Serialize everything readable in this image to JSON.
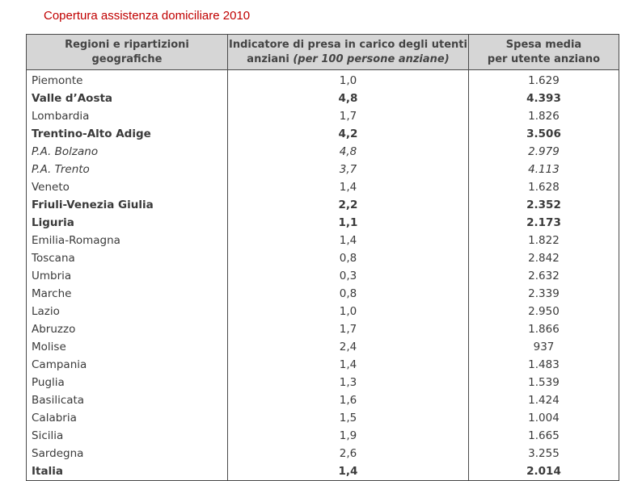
{
  "title": "Copertura assistenza domiciliare  2010",
  "header": {
    "col1_line1": "Regioni e ripartizioni",
    "col1_line2": "geografiche",
    "col2_line1": "Indicatore di presa in carico degli utenti",
    "col2_line2_a": "anziani ",
    "col2_line2_b": "(per 100 persone anziane)",
    "col3_line1": "Spesa media",
    "col3_line2": "per utente anziano"
  },
  "rows": [
    {
      "region": "Piemonte",
      "indicator": "1,0",
      "spesa": "1.629",
      "style": ""
    },
    {
      "region": "Valle d’Aosta",
      "indicator": "4,8",
      "spesa": "4.393",
      "style": "b"
    },
    {
      "region": "Lombardia",
      "indicator": "1,7",
      "spesa": "1.826",
      "style": ""
    },
    {
      "region": "Trentino-Alto Adige",
      "indicator": "4,2",
      "spesa": "3.506",
      "style": "b"
    },
    {
      "region": "P.A. Bolzano",
      "indicator": "4,8",
      "spesa": "2.979",
      "style": "i"
    },
    {
      "region": "P.A. Trento",
      "indicator": "3,7",
      "spesa": "4.113",
      "style": "i"
    },
    {
      "region": "Veneto",
      "indicator": "1,4",
      "spesa": "1.628",
      "style": ""
    },
    {
      "region": "Friuli-Venezia Giulia",
      "indicator": "2,2",
      "spesa": "2.352",
      "style": "b"
    },
    {
      "region": "Liguria",
      "indicator": "1,1",
      "spesa": "2.173",
      "style": "b"
    },
    {
      "region": "Emilia-Romagna",
      "indicator": "1,4",
      "spesa": "1.822",
      "style": ""
    },
    {
      "region": "Toscana",
      "indicator": "0,8",
      "spesa": "2.842",
      "style": ""
    },
    {
      "region": "Umbria",
      "indicator": "0,3",
      "spesa": "2.632",
      "style": ""
    },
    {
      "region": "Marche",
      "indicator": "0,8",
      "spesa": "2.339",
      "style": ""
    },
    {
      "region": "Lazio",
      "indicator": "1,0",
      "spesa": "2.950",
      "style": ""
    },
    {
      "region": "Abruzzo",
      "indicator": "1,7",
      "spesa": "1.866",
      "style": ""
    },
    {
      "region": "Molise",
      "indicator": "2,4",
      "spesa": "937",
      "style": ""
    },
    {
      "region": "Campania",
      "indicator": "1,4",
      "spesa": "1.483",
      "style": ""
    },
    {
      "region": "Puglia",
      "indicator": "1,3",
      "spesa": "1.539",
      "style": ""
    },
    {
      "region": "Basilicata",
      "indicator": "1,6",
      "spesa": "1.424",
      "style": ""
    },
    {
      "region": "Calabria",
      "indicator": "1,5",
      "spesa": "1.004",
      "style": ""
    },
    {
      "region": "Sicilia",
      "indicator": "1,9",
      "spesa": "1.665",
      "style": ""
    },
    {
      "region": "Sardegna",
      "indicator": "2,6",
      "spesa": "3.255",
      "style": ""
    },
    {
      "region": "Italia",
      "indicator": "1,4",
      "spesa": "2.014",
      "style": "b"
    }
  ]
}
